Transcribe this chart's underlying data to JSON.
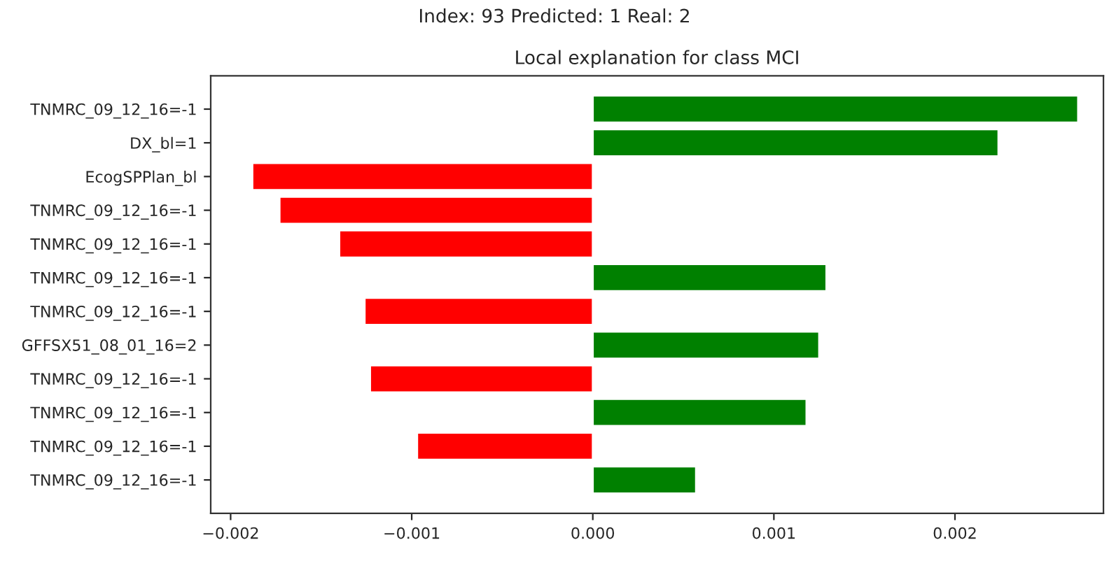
{
  "chart_data": {
    "type": "bar",
    "orientation": "horizontal",
    "title": "Local explanation for class MCI",
    "subtitle": "Index: 93 Predicted: 1 Real: 2",
    "categories": [
      "TNMRC_09_12_16=-1",
      "DX_bl=1",
      "EcogSPPlan_bl",
      "TNMRC_09_12_16=-1",
      "TNMRC_09_12_16=-1",
      "TNMRC_09_12_16=-1",
      "TNMRC_09_12_16=-1",
      "GFFSX51_08_01_16=2",
      "TNMRC_09_12_16=-1",
      "TNMRC_09_12_16=-1",
      "TNMRC_09_12_16=-1",
      "TNMRC_09_12_16=-1"
    ],
    "values": [
      0.00268,
      0.00224,
      -0.00188,
      -0.00173,
      -0.0014,
      0.00129,
      -0.00126,
      0.00125,
      -0.00123,
      0.00118,
      -0.00097,
      0.00057
    ],
    "colors": [
      "#008000",
      "#008000",
      "#ff0000",
      "#ff0000",
      "#ff0000",
      "#008000",
      "#ff0000",
      "#008000",
      "#ff0000",
      "#008000",
      "#ff0000",
      "#008000"
    ],
    "xlim": [
      -0.00211,
      0.00282
    ],
    "xticks": [
      {
        "value": -0.002,
        "label": "−0.002"
      },
      {
        "value": -0.001,
        "label": "−0.001"
      },
      {
        "value": 0,
        "label": "0.000"
      },
      {
        "value": 0.001,
        "label": "0.001"
      },
      {
        "value": 0.002,
        "label": "0.002"
      }
    ],
    "grid": false,
    "legend": false
  }
}
